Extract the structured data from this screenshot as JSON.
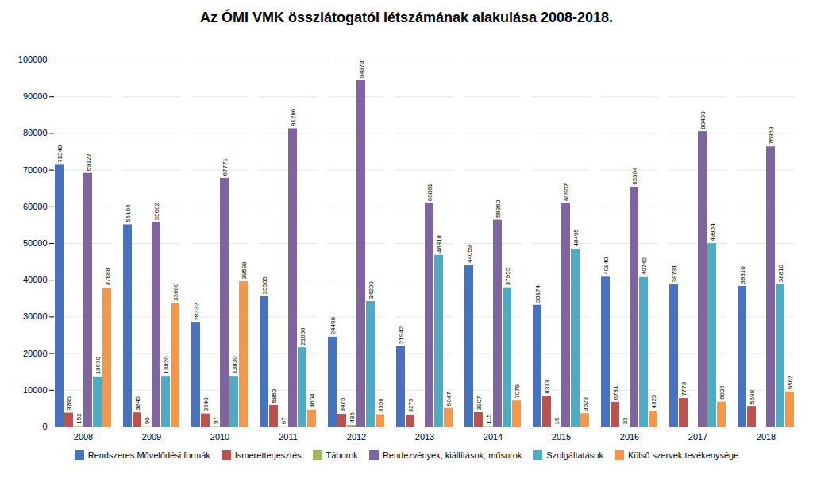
{
  "chart_data": {
    "type": "bar",
    "title": "Az ÓMI VMK összlátogatói létszámának alakulása 2008-2018.",
    "categories": [
      "2008",
      "2009",
      "2010",
      "2011",
      "2012",
      "2013",
      "2014",
      "2015",
      "2016",
      "2017",
      "2018"
    ],
    "series": [
      {
        "name": "Rendszeres Művelődési formák",
        "color": "#4472C4",
        "values": [
          71348,
          55104,
          28332,
          35505,
          24490,
          21942,
          44059,
          33174,
          40840,
          38731,
          38310
        ]
      },
      {
        "name": "Ismeretterjesztés",
        "color": "#C0504D",
        "values": [
          3780,
          3845,
          3540,
          5850,
          3475,
          3275,
          3907,
          8373,
          6731,
          7773,
          5598
        ]
      },
      {
        "name": "Táborok",
        "color": "#9BBB59",
        "values": [
          152,
          90,
          97,
          67,
          435,
          0,
          115,
          15,
          32,
          0,
          0
        ]
      },
      {
        "name": "Rendezvények, kiállítások, műsorok",
        "color": "#8064A2",
        "values": [
          69127,
          55662,
          67771,
          81286,
          94373,
          60861,
          56360,
          60907,
          65304,
          80490,
          76353
        ]
      },
      {
        "name": "Szolgáltatások",
        "color": "#4BACC6",
        "values": [
          13670,
          13820,
          13830,
          21606,
          34200,
          46818,
          37955,
          48495,
          40742,
          49964,
          38810
        ]
      },
      {
        "name": "Külső szervek tevékenysége",
        "color": "#F79646",
        "values": [
          37888,
          33660,
          39599,
          4604,
          3356,
          5047,
          7079,
          3629,
          4325,
          6806,
          9562
        ]
      }
    ],
    "ylim": [
      0,
      100000
    ],
    "yticks": [
      0,
      10000,
      20000,
      30000,
      40000,
      50000,
      60000,
      70000,
      80000,
      90000,
      100000
    ],
    "grid": true,
    "legend": "bottom",
    "data_labels": true
  }
}
